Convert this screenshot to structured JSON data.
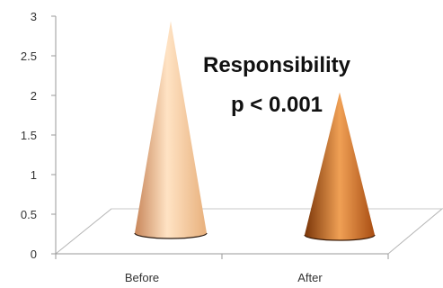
{
  "chart_data": {
    "type": "bar",
    "bar_shape": "cone",
    "categories": [
      "Before",
      "After"
    ],
    "values": [
      2.95,
      2.05
    ],
    "ylim": [
      0,
      3
    ],
    "yticks": [
      "0",
      "0.5",
      "1",
      "1.5",
      "2",
      "2.5",
      "3"
    ],
    "grid": false,
    "legend": "none",
    "annotation": [
      "Responsibility",
      "p < 0.001"
    ],
    "colors": {
      "before_light": "#ffe3c4",
      "before_mid": "#f3c08f",
      "before_dark": "#c8865a",
      "after_light": "#f0a055",
      "after_mid": "#c8641c",
      "after_dark": "#7a3508",
      "axis": "#9a9a9a"
    }
  }
}
